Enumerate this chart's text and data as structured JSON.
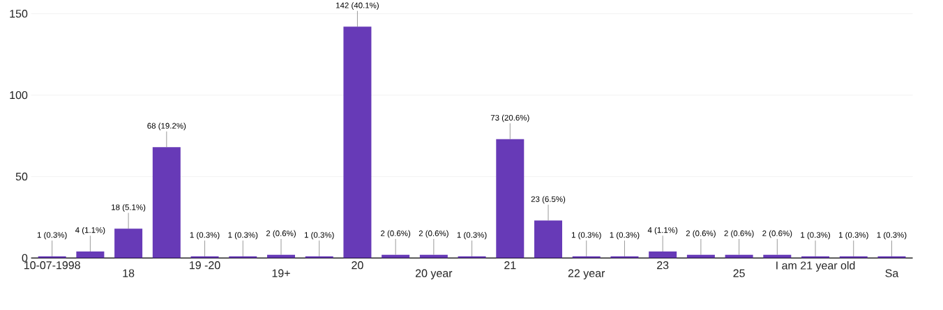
{
  "chart_data": {
    "type": "bar",
    "categories": [
      "10-07-1998",
      null,
      "18",
      null,
      "19 -20",
      null,
      "19+",
      null,
      "20",
      null,
      "20 year",
      null,
      "21",
      null,
      "22 year",
      null,
      "23",
      null,
      "25",
      null,
      "I am 21 year old",
      null,
      "Sa"
    ],
    "values": [
      1,
      4,
      18,
      68,
      1,
      1,
      2,
      1,
      142,
      2,
      2,
      1,
      73,
      23,
      1,
      1,
      4,
      2,
      2,
      2,
      1,
      1,
      1
    ],
    "value_labels": [
      "1 (0.3%)",
      "4 (1.1%)",
      "18 (5.1%)",
      "68 (19.2%)",
      "1 (0.3%)",
      "1 (0.3%)",
      "2 (0.6%)",
      "1 (0.3%)",
      "142 (40.1%)",
      "2 (0.6%)",
      "2 (0.6%)",
      "1 (0.3%)",
      "73 (20.6%)",
      "23 (6.5%)",
      "1 (0.3%)",
      "1 (0.3%)",
      "4 (1.1%)",
      "2 (0.6%)",
      "2 (0.6%)",
      "2 (0.6%)",
      "1 (0.3%)",
      "1 (0.3%)",
      "1 (0.3%)"
    ],
    "color": "#673ab7",
    "ylim": [
      0,
      150
    ],
    "yticks": [
      0,
      50,
      100,
      150
    ],
    "grid": "y"
  }
}
